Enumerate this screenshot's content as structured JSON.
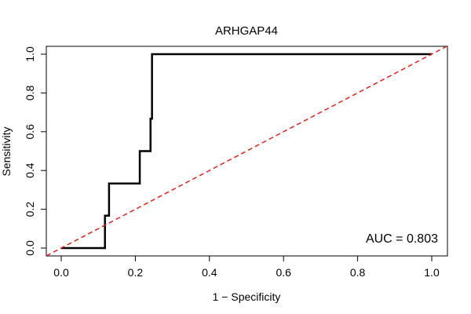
{
  "chart_data": {
    "type": "line",
    "title": "ARHGAP44",
    "xlabel": "1 − Specificity",
    "ylabel": "Sensitivity",
    "xlim": [
      0,
      1
    ],
    "ylim": [
      0,
      1
    ],
    "xticks": [
      0.0,
      0.2,
      0.4,
      0.6,
      0.8,
      1.0
    ],
    "xtick_labels": [
      "0.0",
      "0.2",
      "0.4",
      "0.6",
      "0.8",
      "1.0"
    ],
    "yticks": [
      0.0,
      0.2,
      0.4,
      0.6,
      0.8,
      1.0
    ],
    "ytick_labels": [
      "0.0",
      "0.2",
      "0.4",
      "0.6",
      "0.8",
      "1.0"
    ],
    "grid": false,
    "annotation": "AUC = 0.803",
    "series": [
      {
        "color": "#000000",
        "style": "solid",
        "x": [
          0.0,
          0.118,
          0.118,
          0.129,
          0.129,
          0.212,
          0.212,
          0.241,
          0.241,
          0.245,
          0.245,
          1.0
        ],
        "y": [
          0.0,
          0.0,
          0.167,
          0.167,
          0.333,
          0.333,
          0.5,
          0.5,
          0.667,
          0.667,
          1.0,
          1.0
        ]
      },
      {
        "color": "#e8201a",
        "style": "dashed",
        "x": [
          -0.04,
          1.04
        ],
        "y": [
          -0.04,
          1.04
        ]
      }
    ]
  }
}
